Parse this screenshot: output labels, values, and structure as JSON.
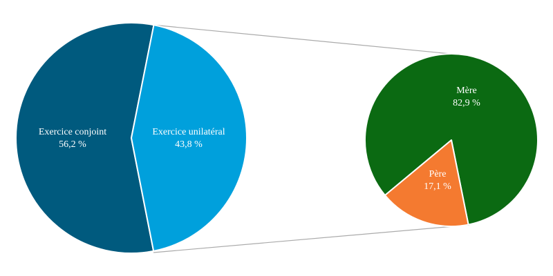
{
  "chart_data": [
    {
      "type": "pie",
      "categories": [
        "Exercice conjoint",
        "Exercice unilatéral"
      ],
      "values": [
        56.2,
        43.8
      ],
      "value_labels": [
        "56,2 %",
        "43,8 %"
      ],
      "colors": [
        "#005a7e",
        "#00a0dc"
      ]
    },
    {
      "type": "pie",
      "categories": [
        "Mère",
        "Père"
      ],
      "values": [
        82.9,
        17.1
      ],
      "value_labels": [
        "82,9 %",
        "17,1 %"
      ],
      "colors": [
        "#0b6a12",
        "#f47a30"
      ]
    }
  ]
}
